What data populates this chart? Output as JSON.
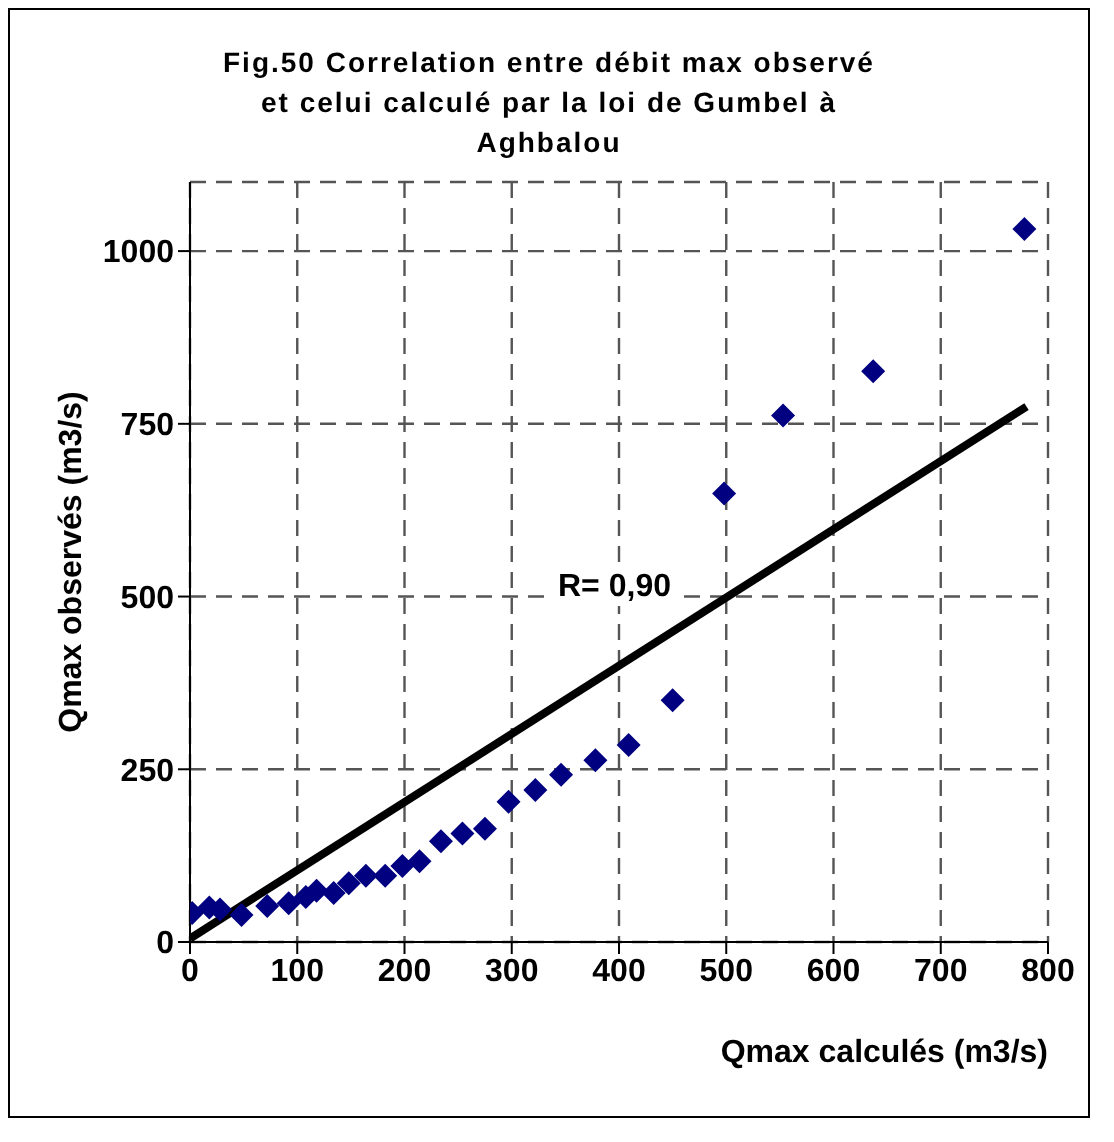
{
  "chart_data": {
    "type": "scatter",
    "title": "Fig.50 Correlation entre débit max observé et celui calculé par la loi de Gumbel  à Aghbalou",
    "xlabel": "Qmax calculés (m3/s)",
    "ylabel": "Qmax observés (m3/s)",
    "xlim": [
      0,
      800
    ],
    "xticks": [
      0,
      100,
      200,
      300,
      400,
      500,
      600,
      700,
      800
    ],
    "ylim": [
      0,
      1100
    ],
    "yticks": [
      0,
      250,
      500,
      750,
      1000
    ],
    "grid": true,
    "annotations": [
      "R= 0,90"
    ],
    "series": [
      {
        "color": "#000080",
        "marker": "diamond",
        "x": [
          2,
          18,
          28,
          48,
          72,
          92,
          108,
          118,
          134,
          148,
          164,
          182,
          198,
          214,
          234,
          254,
          275,
          297,
          322,
          346,
          378,
          409,
          450,
          498,
          553,
          637,
          778
        ],
        "values": [
          42,
          50,
          47,
          39,
          52,
          56,
          65,
          74,
          71,
          85,
          96,
          96,
          110,
          117,
          146,
          157,
          164,
          203,
          220,
          242,
          263,
          285,
          350,
          649,
          762,
          826,
          1032
        ]
      },
      {
        "type": "line",
        "color": "#000000",
        "x": [
          0,
          780
        ],
        "values": [
          5,
          775
        ]
      }
    ]
  }
}
